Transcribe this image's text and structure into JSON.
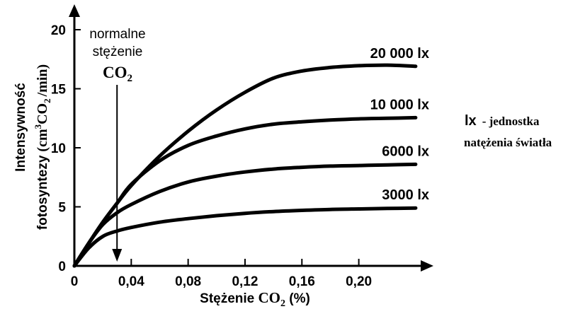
{
  "chart_data": {
    "type": "line",
    "xlabel": {
      "prefix": "Stężenie ",
      "chem": "CO",
      "sub": "2",
      "suffix": " (%)"
    },
    "ylabel": {
      "line1": "Intensywność",
      "line2_prefix": "fotosyntezy",
      "line2_unit": "(cm",
      "line2_sup": "3",
      "line2_chem": "CO",
      "line2_sub": "2",
      "line2_end": "/min)"
    },
    "xlim": [
      0,
      0.245
    ],
    "ylim": [
      0,
      21
    ],
    "x_ticks": [
      {
        "value": 0,
        "label": "0"
      },
      {
        "value": 0.04,
        "label": "0,04"
      },
      {
        "value": 0.08,
        "label": "0,08"
      },
      {
        "value": 0.12,
        "label": "0,12"
      },
      {
        "value": 0.16,
        "label": "0,16"
      },
      {
        "value": 0.2,
        "label": "0,20"
      }
    ],
    "y_ticks": [
      {
        "value": 0,
        "label": "0"
      },
      {
        "value": 5,
        "label": "5"
      },
      {
        "value": 10,
        "label": "10"
      },
      {
        "value": 15,
        "label": "15"
      },
      {
        "value": 20,
        "label": "20"
      }
    ],
    "series": [
      {
        "name": "20 000 lx",
        "x": [
          0,
          0.01,
          0.02,
          0.03,
          0.04,
          0.06,
          0.08,
          0.1,
          0.12,
          0.14,
          0.16,
          0.18,
          0.2,
          0.22,
          0.24
        ],
        "y": [
          0,
          1.9,
          3.7,
          5.3,
          6.8,
          9.3,
          11.4,
          13.2,
          14.7,
          15.9,
          16.5,
          16.8,
          16.95,
          17.0,
          16.9
        ]
      },
      {
        "name": "10 000 lx",
        "x": [
          0,
          0.01,
          0.02,
          0.03,
          0.04,
          0.06,
          0.08,
          0.1,
          0.12,
          0.14,
          0.16,
          0.18,
          0.2,
          0.22,
          0.24
        ],
        "y": [
          0,
          1.9,
          3.7,
          5.3,
          6.9,
          8.9,
          10.2,
          11.0,
          11.6,
          12.0,
          12.2,
          12.35,
          12.45,
          12.5,
          12.55
        ]
      },
      {
        "name": "6000 lx",
        "x": [
          0,
          0.01,
          0.02,
          0.03,
          0.04,
          0.06,
          0.08,
          0.1,
          0.12,
          0.14,
          0.16,
          0.18,
          0.2,
          0.22,
          0.24
        ],
        "y": [
          0,
          1.9,
          3.5,
          4.5,
          5.2,
          6.3,
          7.1,
          7.6,
          7.95,
          8.2,
          8.35,
          8.45,
          8.5,
          8.55,
          8.6
        ]
      },
      {
        "name": "3000 lx",
        "x": [
          0,
          0.01,
          0.02,
          0.03,
          0.04,
          0.06,
          0.08,
          0.1,
          0.12,
          0.14,
          0.16,
          0.18,
          0.2,
          0.22,
          0.24
        ],
        "y": [
          0,
          1.5,
          2.5,
          2.95,
          3.25,
          3.7,
          4.0,
          4.25,
          4.45,
          4.6,
          4.7,
          4.78,
          4.82,
          4.86,
          4.9
        ]
      }
    ],
    "annotation": {
      "line1": "normalne",
      "line2": "stężenie",
      "chem": "CO",
      "sub": "2",
      "x": 0.03
    },
    "side_note": {
      "abbr": "lx",
      "line1": "- jednostka",
      "line2": "natężenia światła"
    }
  },
  "colors": {
    "ink": "#000000",
    "background": "#ffffff"
  }
}
